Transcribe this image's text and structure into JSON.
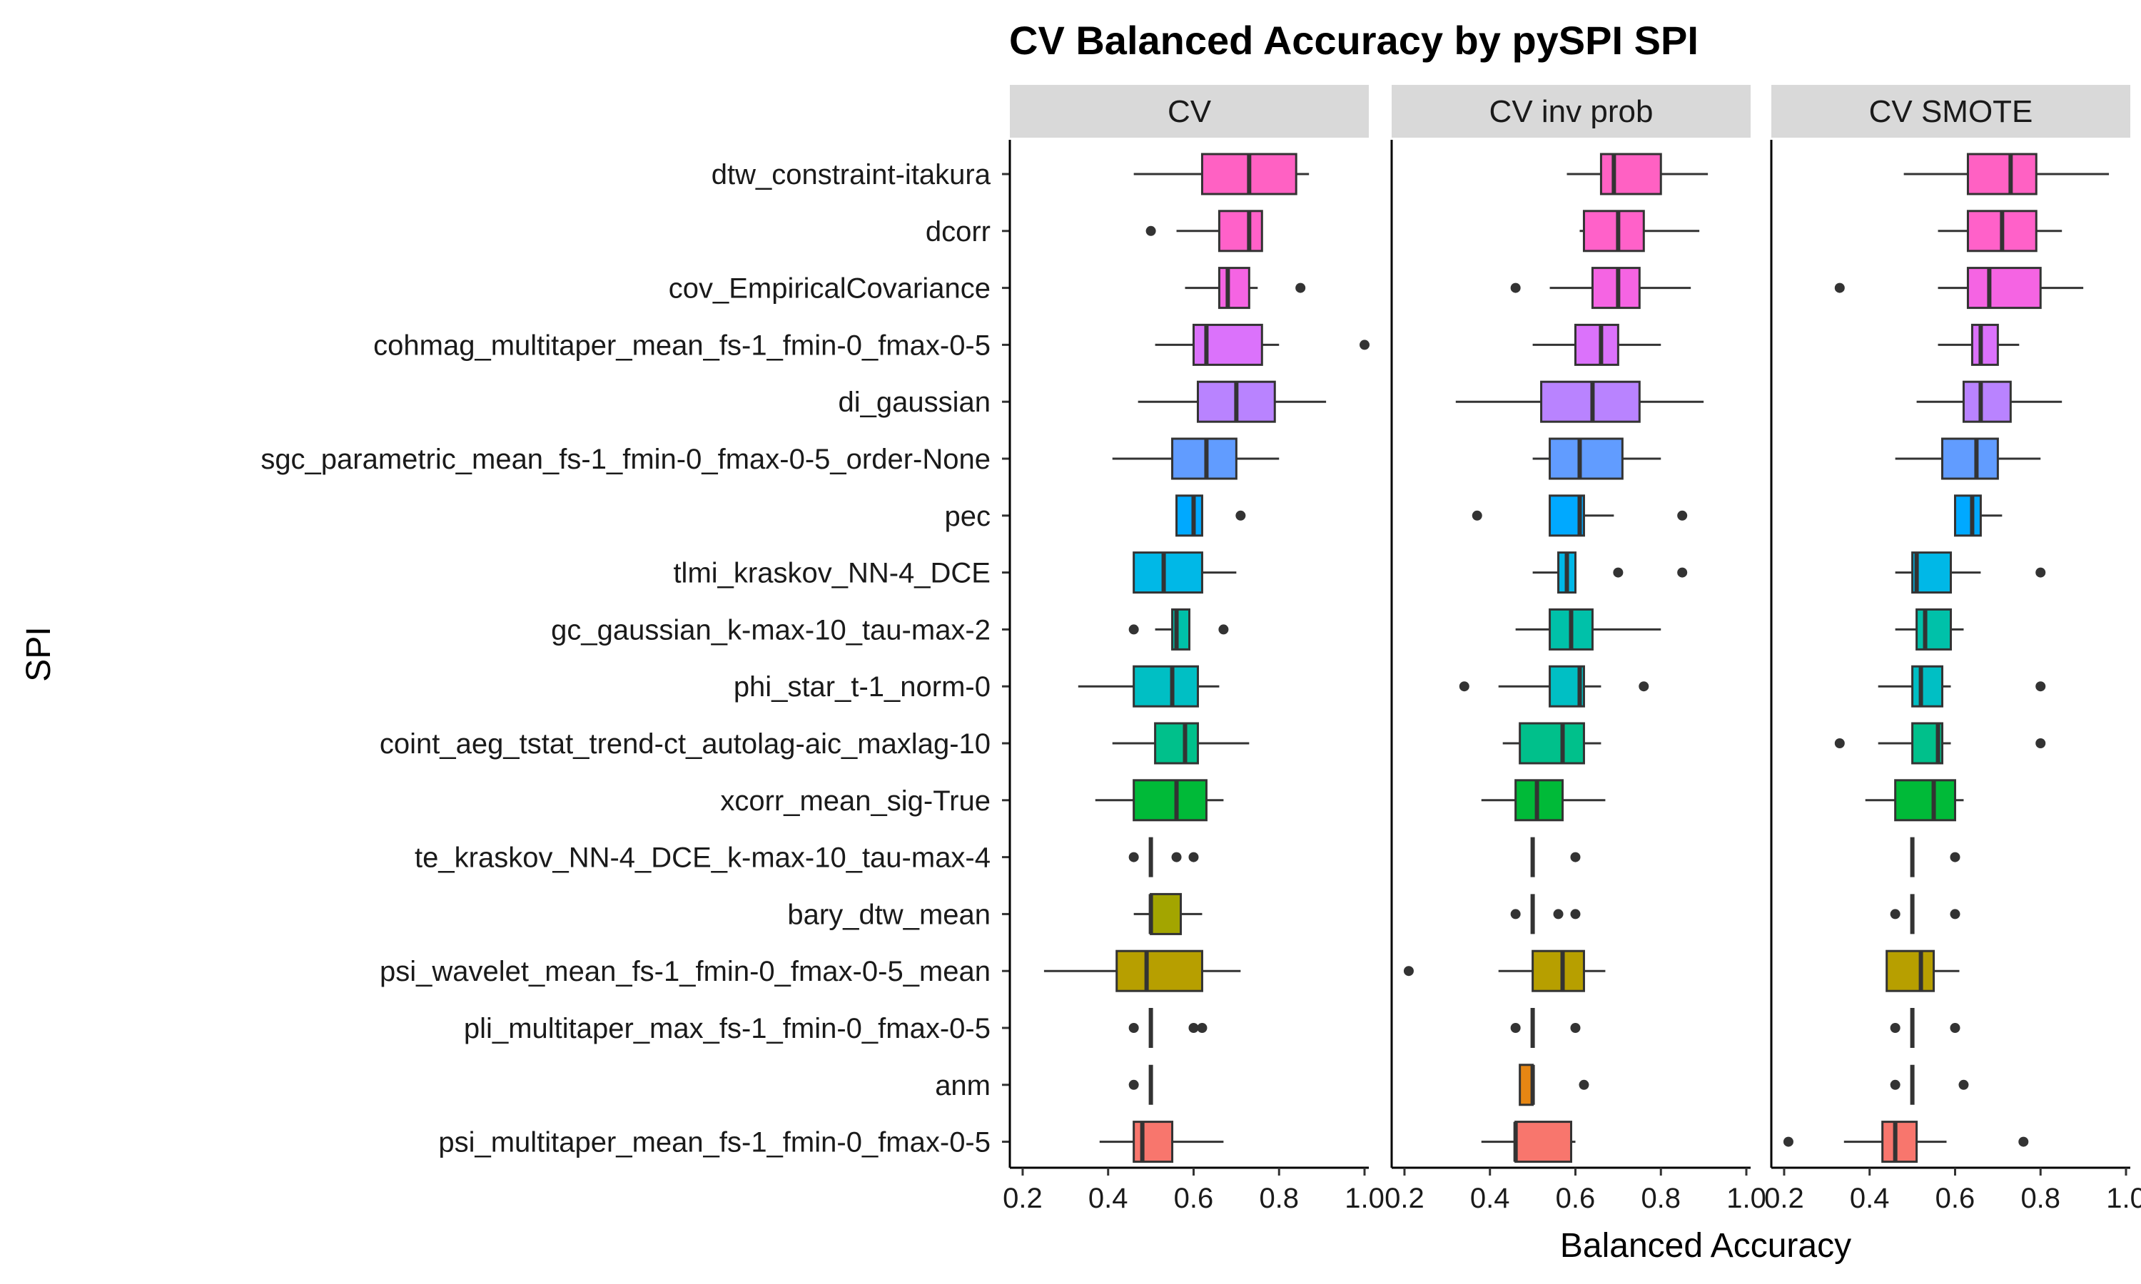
{
  "chart_data": {
    "type": "boxplot",
    "title": "CV Balanced Accuracy by pySPI SPI",
    "xlabel": "Balanced Accuracy",
    "ylabel": "SPI",
    "xlim": [
      0.17,
      1.01
    ],
    "xticks": [
      0.2,
      0.4,
      0.6,
      0.8,
      1.0
    ],
    "xtick_labels": [
      "0.2",
      "0.4",
      "0.6",
      "0.8",
      "1.0"
    ],
    "legend": "none",
    "panels": [
      "CV",
      "CV inv prob",
      "CV SMOTE"
    ],
    "categories": [
      "dtw_constraint-itakura",
      "dcorr",
      "cov_EmpiricalCovariance",
      "cohmag_multitaper_mean_fs-1_fmin-0_fmax-0-5",
      "di_gaussian",
      "sgc_parametric_mean_fs-1_fmin-0_fmax-0-5_order-None",
      "pec",
      "tlmi_kraskov_NN-4_DCE",
      "gc_gaussian_k-max-10_tau-max-2",
      "phi_star_t-1_norm-0",
      "coint_aeg_tstat_trend-ct_autolag-aic_maxlag-10",
      "xcorr_mean_sig-True",
      "te_kraskov_NN-4_DCE_k-max-10_tau-max-4",
      "bary_dtw_mean",
      "psi_wavelet_mean_fs-1_fmin-0_fmax-0-5_mean",
      "pli_multitaper_max_fs-1_fmin-0_fmax-0-5",
      "anm",
      "psi_multitaper_mean_fs-1_fmin-0_fmax-0-5"
    ],
    "colors": [
      "#FF61C3",
      "#FF61C9",
      "#F564E3",
      "#DB72FB",
      "#B983FF",
      "#619CFF",
      "#00A9FF",
      "#00B8E7",
      "#00C1A9",
      "#00BFC4",
      "#00C08B",
      "#00BA38",
      "#7CAE00",
      "#A3A500",
      "#B79F00",
      "#DE8C00",
      "#E68613",
      "#F8766D"
    ],
    "series": [
      {
        "panel": "CV",
        "boxes": [
          {
            "min": 0.46,
            "q1": 0.62,
            "median": 0.73,
            "q3": 0.84,
            "max": 0.87,
            "outliers": []
          },
          {
            "min": 0.56,
            "q1": 0.66,
            "median": 0.73,
            "q3": 0.76,
            "max": 0.76,
            "outliers": [
              0.5
            ]
          },
          {
            "min": 0.58,
            "q1": 0.66,
            "median": 0.68,
            "q3": 0.73,
            "max": 0.75,
            "outliers": [
              0.85
            ]
          },
          {
            "min": 0.51,
            "q1": 0.6,
            "median": 0.63,
            "q3": 0.76,
            "max": 0.8,
            "outliers": [
              1.0
            ]
          },
          {
            "min": 0.47,
            "q1": 0.61,
            "median": 0.7,
            "q3": 0.79,
            "max": 0.91,
            "outliers": []
          },
          {
            "min": 0.41,
            "q1": 0.55,
            "median": 0.63,
            "q3": 0.7,
            "max": 0.8,
            "outliers": []
          },
          {
            "min": 0.56,
            "q1": 0.56,
            "median": 0.6,
            "q3": 0.62,
            "max": 0.62,
            "outliers": [
              0.71
            ]
          },
          {
            "min": 0.46,
            "q1": 0.46,
            "median": 0.53,
            "q3": 0.62,
            "max": 0.7,
            "outliers": []
          },
          {
            "min": 0.51,
            "q1": 0.55,
            "median": 0.56,
            "q3": 0.59,
            "max": 0.59,
            "outliers": [
              0.46,
              0.67
            ]
          },
          {
            "min": 0.33,
            "q1": 0.46,
            "median": 0.55,
            "q3": 0.61,
            "max": 0.66,
            "outliers": []
          },
          {
            "min": 0.41,
            "q1": 0.51,
            "median": 0.58,
            "q3": 0.61,
            "max": 0.73,
            "outliers": []
          },
          {
            "min": 0.37,
            "q1": 0.46,
            "median": 0.56,
            "q3": 0.63,
            "max": 0.67,
            "outliers": []
          },
          {
            "min": 0.5,
            "q1": 0.5,
            "median": 0.5,
            "q3": 0.5,
            "max": 0.5,
            "outliers": [
              0.46,
              0.56,
              0.6
            ]
          },
          {
            "min": 0.46,
            "q1": 0.5,
            "median": 0.5,
            "q3": 0.57,
            "max": 0.62,
            "outliers": []
          },
          {
            "min": 0.25,
            "q1": 0.42,
            "median": 0.49,
            "q3": 0.62,
            "max": 0.71,
            "outliers": []
          },
          {
            "min": 0.5,
            "q1": 0.5,
            "median": 0.5,
            "q3": 0.5,
            "max": 0.5,
            "outliers": [
              0.46,
              0.6,
              0.62
            ]
          },
          {
            "min": 0.5,
            "q1": 0.5,
            "median": 0.5,
            "q3": 0.5,
            "max": 0.5,
            "outliers": [
              0.46
            ]
          },
          {
            "min": 0.38,
            "q1": 0.46,
            "median": 0.48,
            "q3": 0.55,
            "max": 0.67,
            "outliers": []
          }
        ]
      },
      {
        "panel": "CV inv prob",
        "boxes": [
          {
            "min": 0.58,
            "q1": 0.66,
            "median": 0.69,
            "q3": 0.8,
            "max": 0.91,
            "outliers": []
          },
          {
            "min": 0.61,
            "q1": 0.62,
            "median": 0.7,
            "q3": 0.76,
            "max": 0.89,
            "outliers": []
          },
          {
            "min": 0.54,
            "q1": 0.64,
            "median": 0.7,
            "q3": 0.75,
            "max": 0.87,
            "outliers": [
              0.46
            ]
          },
          {
            "min": 0.5,
            "q1": 0.6,
            "median": 0.66,
            "q3": 0.7,
            "max": 0.8,
            "outliers": []
          },
          {
            "min": 0.32,
            "q1": 0.52,
            "median": 0.64,
            "q3": 0.75,
            "max": 0.9,
            "outliers": []
          },
          {
            "min": 0.5,
            "q1": 0.54,
            "median": 0.61,
            "q3": 0.71,
            "max": 0.8,
            "outliers": []
          },
          {
            "min": 0.54,
            "q1": 0.54,
            "median": 0.61,
            "q3": 0.62,
            "max": 0.69,
            "outliers": [
              0.37,
              0.85
            ]
          },
          {
            "min": 0.5,
            "q1": 0.56,
            "median": 0.58,
            "q3": 0.6,
            "max": 0.6,
            "outliers": [
              0.7,
              0.85
            ]
          },
          {
            "min": 0.46,
            "q1": 0.54,
            "median": 0.59,
            "q3": 0.64,
            "max": 0.8,
            "outliers": []
          },
          {
            "min": 0.42,
            "q1": 0.54,
            "median": 0.61,
            "q3": 0.62,
            "max": 0.66,
            "outliers": [
              0.34,
              0.76
            ]
          },
          {
            "min": 0.43,
            "q1": 0.47,
            "median": 0.57,
            "q3": 0.62,
            "max": 0.66,
            "outliers": []
          },
          {
            "min": 0.38,
            "q1": 0.46,
            "median": 0.51,
            "q3": 0.57,
            "max": 0.67,
            "outliers": []
          },
          {
            "min": 0.5,
            "q1": 0.5,
            "median": 0.5,
            "q3": 0.5,
            "max": 0.5,
            "outliers": [
              0.6
            ]
          },
          {
            "min": 0.5,
            "q1": 0.5,
            "median": 0.5,
            "q3": 0.5,
            "max": 0.5,
            "outliers": [
              0.46,
              0.56,
              0.6
            ]
          },
          {
            "min": 0.42,
            "q1": 0.5,
            "median": 0.57,
            "q3": 0.62,
            "max": 0.67,
            "outliers": [
              0.21
            ]
          },
          {
            "min": 0.5,
            "q1": 0.5,
            "median": 0.5,
            "q3": 0.5,
            "max": 0.5,
            "outliers": [
              0.46,
              0.6
            ]
          },
          {
            "min": 0.47,
            "q1": 0.47,
            "median": 0.5,
            "q3": 0.5,
            "max": 0.5,
            "outliers": [
              0.62
            ]
          },
          {
            "min": 0.38,
            "q1": 0.46,
            "median": 0.46,
            "q3": 0.59,
            "max": 0.6,
            "outliers": []
          }
        ]
      },
      {
        "panel": "CV SMOTE",
        "boxes": [
          {
            "min": 0.48,
            "q1": 0.63,
            "median": 0.73,
            "q3": 0.79,
            "max": 0.96,
            "outliers": []
          },
          {
            "min": 0.56,
            "q1": 0.63,
            "median": 0.71,
            "q3": 0.79,
            "max": 0.85,
            "outliers": []
          },
          {
            "min": 0.56,
            "q1": 0.63,
            "median": 0.68,
            "q3": 0.8,
            "max": 0.9,
            "outliers": [
              0.33
            ]
          },
          {
            "min": 0.56,
            "q1": 0.64,
            "median": 0.66,
            "q3": 0.7,
            "max": 0.75,
            "outliers": []
          },
          {
            "min": 0.51,
            "q1": 0.62,
            "median": 0.66,
            "q3": 0.73,
            "max": 0.85,
            "outliers": []
          },
          {
            "min": 0.46,
            "q1": 0.57,
            "median": 0.65,
            "q3": 0.7,
            "max": 0.8,
            "outliers": []
          },
          {
            "min": 0.6,
            "q1": 0.6,
            "median": 0.64,
            "q3": 0.66,
            "max": 0.71,
            "outliers": []
          },
          {
            "min": 0.46,
            "q1": 0.5,
            "median": 0.51,
            "q3": 0.59,
            "max": 0.66,
            "outliers": [
              0.8
            ]
          },
          {
            "min": 0.46,
            "q1": 0.51,
            "median": 0.53,
            "q3": 0.59,
            "max": 0.62,
            "outliers": []
          },
          {
            "min": 0.42,
            "q1": 0.5,
            "median": 0.52,
            "q3": 0.57,
            "max": 0.59,
            "outliers": [
              0.8
            ]
          },
          {
            "min": 0.42,
            "q1": 0.5,
            "median": 0.56,
            "q3": 0.57,
            "max": 0.59,
            "outliers": [
              0.33,
              0.8
            ]
          },
          {
            "min": 0.39,
            "q1": 0.46,
            "median": 0.55,
            "q3": 0.6,
            "max": 0.62,
            "outliers": []
          },
          {
            "min": 0.5,
            "q1": 0.5,
            "median": 0.5,
            "q3": 0.5,
            "max": 0.5,
            "outliers": [
              0.6
            ]
          },
          {
            "min": 0.5,
            "q1": 0.5,
            "median": 0.5,
            "q3": 0.5,
            "max": 0.5,
            "outliers": [
              0.46,
              0.6
            ]
          },
          {
            "min": 0.44,
            "q1": 0.44,
            "median": 0.52,
            "q3": 0.55,
            "max": 0.61,
            "outliers": []
          },
          {
            "min": 0.5,
            "q1": 0.5,
            "median": 0.5,
            "q3": 0.5,
            "max": 0.5,
            "outliers": [
              0.46,
              0.6
            ]
          },
          {
            "min": 0.5,
            "q1": 0.5,
            "median": 0.5,
            "q3": 0.5,
            "max": 0.5,
            "outliers": [
              0.46,
              0.62
            ]
          },
          {
            "min": 0.34,
            "q1": 0.43,
            "median": 0.46,
            "q3": 0.51,
            "max": 0.58,
            "outliers": [
              0.21,
              0.76
            ]
          }
        ]
      }
    ]
  }
}
